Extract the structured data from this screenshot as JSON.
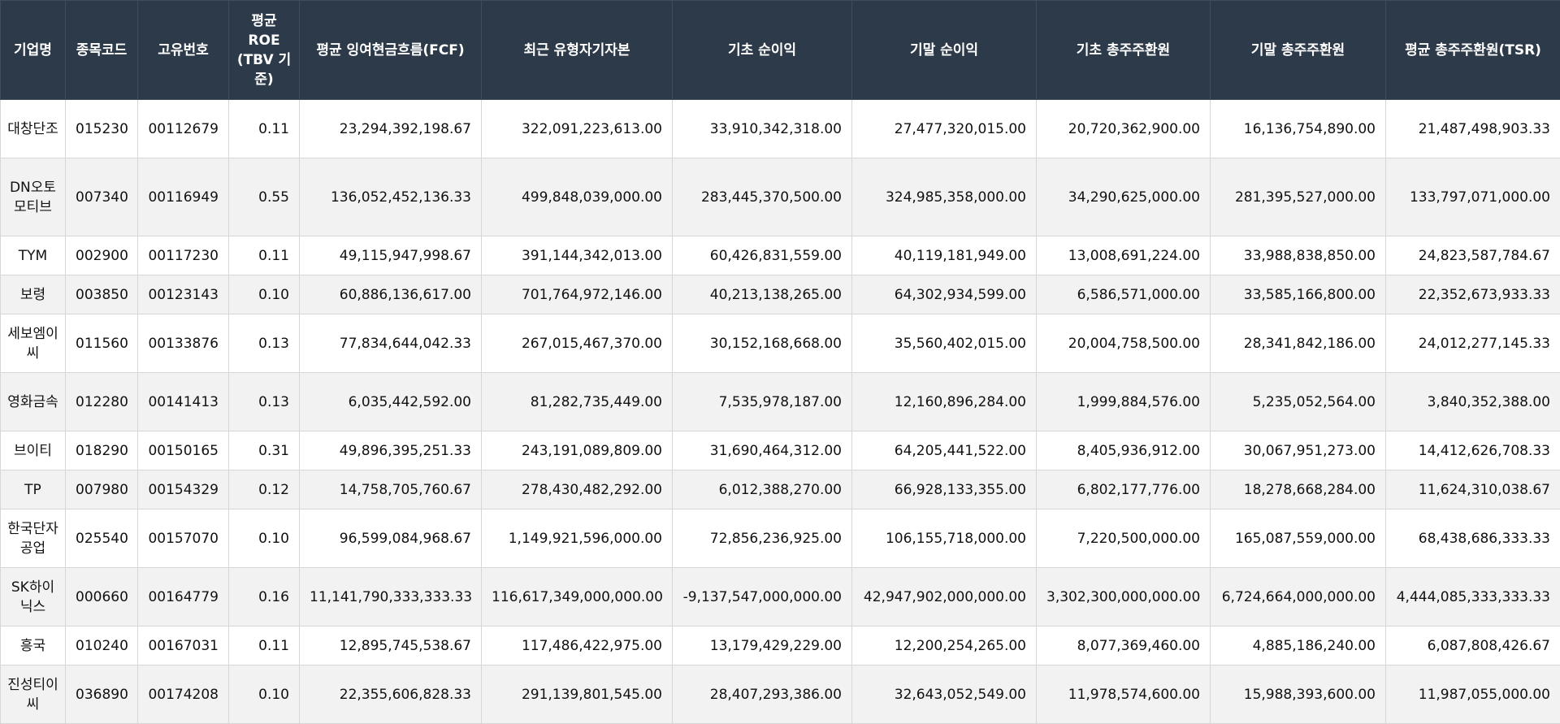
{
  "table": {
    "headers": [
      "기업명",
      "종목코드",
      "고유번호",
      "평균 ROE (TBV 기준)",
      "평균 잉여현금흐름(FCF)",
      "최근 유형자기자본",
      "기초 순이익",
      "기말 순이익",
      "기초 총주주환원",
      "기말 총주주환원",
      "평균 총주주환원(TSR)"
    ],
    "rows": [
      [
        "대창단조",
        "015230",
        "00112679",
        "0.11",
        "23,294,392,198.67",
        "322,091,223,613.00",
        "33,910,342,318.00",
        "27,477,320,015.00",
        "20,720,362,900.00",
        "16,136,754,890.00",
        "21,487,498,903.33"
      ],
      [
        "DN오토모티브",
        "007340",
        "00116949",
        "0.55",
        "136,052,452,136.33",
        "499,848,039,000.00",
        "283,445,370,500.00",
        "324,985,358,000.00",
        "34,290,625,000.00",
        "281,395,527,000.00",
        "133,797,071,000.00"
      ],
      [
        "TYM",
        "002900",
        "00117230",
        "0.11",
        "49,115,947,998.67",
        "391,144,342,013.00",
        "60,426,831,559.00",
        "40,119,181,949.00",
        "13,008,691,224.00",
        "33,988,838,850.00",
        "24,823,587,784.67"
      ],
      [
        "보령",
        "003850",
        "00123143",
        "0.10",
        "60,886,136,617.00",
        "701,764,972,146.00",
        "40,213,138,265.00",
        "64,302,934,599.00",
        "6,586,571,000.00",
        "33,585,166,800.00",
        "22,352,673,933.33"
      ],
      [
        "세보엠이씨",
        "011560",
        "00133876",
        "0.13",
        "77,834,644,042.33",
        "267,015,467,370.00",
        "30,152,168,668.00",
        "35,560,402,015.00",
        "20,004,758,500.00",
        "28,341,842,186.00",
        "24,012,277,145.33"
      ],
      [
        "영화금속",
        "012280",
        "00141413",
        "0.13",
        "6,035,442,592.00",
        "81,282,735,449.00",
        "7,535,978,187.00",
        "12,160,896,284.00",
        "1,999,884,576.00",
        "5,235,052,564.00",
        "3,840,352,388.00"
      ],
      [
        "브이티",
        "018290",
        "00150165",
        "0.31",
        "49,896,395,251.33",
        "243,191,089,809.00",
        "31,690,464,312.00",
        "64,205,441,522.00",
        "8,405,936,912.00",
        "30,067,951,273.00",
        "14,412,626,708.33"
      ],
      [
        "TP",
        "007980",
        "00154329",
        "0.12",
        "14,758,705,760.67",
        "278,430,482,292.00",
        "6,012,388,270.00",
        "66,928,133,355.00",
        "6,802,177,776.00",
        "18,278,668,284.00",
        "11,624,310,038.67"
      ],
      [
        "한국단자공업",
        "025540",
        "00157070",
        "0.10",
        "96,599,084,968.67",
        "1,149,921,596,000.00",
        "72,856,236,925.00",
        "106,155,718,000.00",
        "7,220,500,000.00",
        "165,087,559,000.00",
        "68,438,686,333.33"
      ],
      [
        "SK하이닉스",
        "000660",
        "00164779",
        "0.16",
        "11,141,790,333,333.33",
        "116,617,349,000,000.00",
        "-9,137,547,000,000.00",
        "42,947,902,000,000.00",
        "3,302,300,000,000.00",
        "6,724,664,000,000.00",
        "4,444,085,333,333.33"
      ],
      [
        "흥국",
        "010240",
        "00167031",
        "0.11",
        "12,895,745,538.67",
        "117,486,422,975.00",
        "13,179,429,229.00",
        "12,200,254,265.00",
        "8,077,369,460.00",
        "4,885,186,240.00",
        "6,087,808,426.67"
      ],
      [
        "진성티이씨",
        "036890",
        "00174208",
        "0.10",
        "22,355,606,828.33",
        "291,139,801,545.00",
        "28,407,293,386.00",
        "32,643,052,549.00",
        "11,978,574,600.00",
        "15,988,393,600.00",
        "11,987,055,000.00"
      ]
    ]
  }
}
